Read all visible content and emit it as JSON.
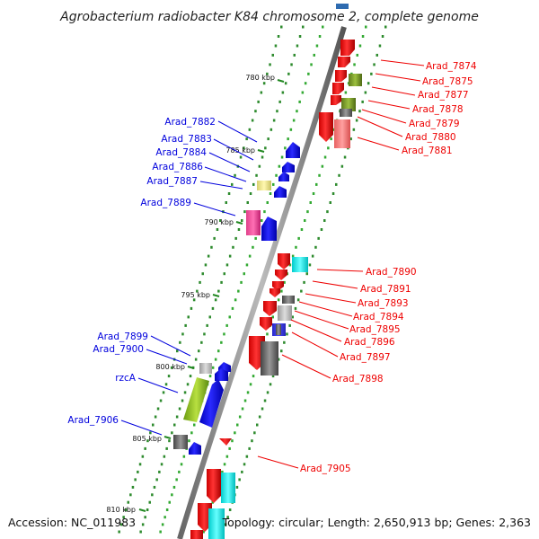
{
  "title": "Agrobacterium radiobacter K84 chromosome 2, complete genome",
  "accession_text": "Accession: NC_011983",
  "summary_text": "Topology: circular; Length: 2,650,913 bp; Genes: 2,363",
  "ticks": [
    "780 kbp",
    "785 kbp",
    "790 kbp",
    "795 kbp",
    "800 kbp",
    "805 kbp",
    "810 kbp"
  ],
  "colors": {
    "minus_strand_label": "#0000dd",
    "plus_strand_label": "#ee0000",
    "backbone": "#888888"
  },
  "left_genes": [
    "Arad_7882",
    "Arad_7883",
    "Arad_7884",
    "Arad_7886",
    "Arad_7887",
    "Arad_7889",
    "Arad_7899",
    "Arad_7900",
    "rzcA",
    "Arad_7906"
  ],
  "right_genes": [
    "Arad_7874",
    "Arad_7875",
    "Arad_7877",
    "Arad_7878",
    "Arad_7879",
    "Arad_7880",
    "Arad_7881",
    "Arad_7890",
    "Arad_7891",
    "Arad_7893",
    "Arad_7894",
    "Arad_7895",
    "Arad_7896",
    "Arad_7897",
    "Arad_7898",
    "Arad_7905"
  ]
}
